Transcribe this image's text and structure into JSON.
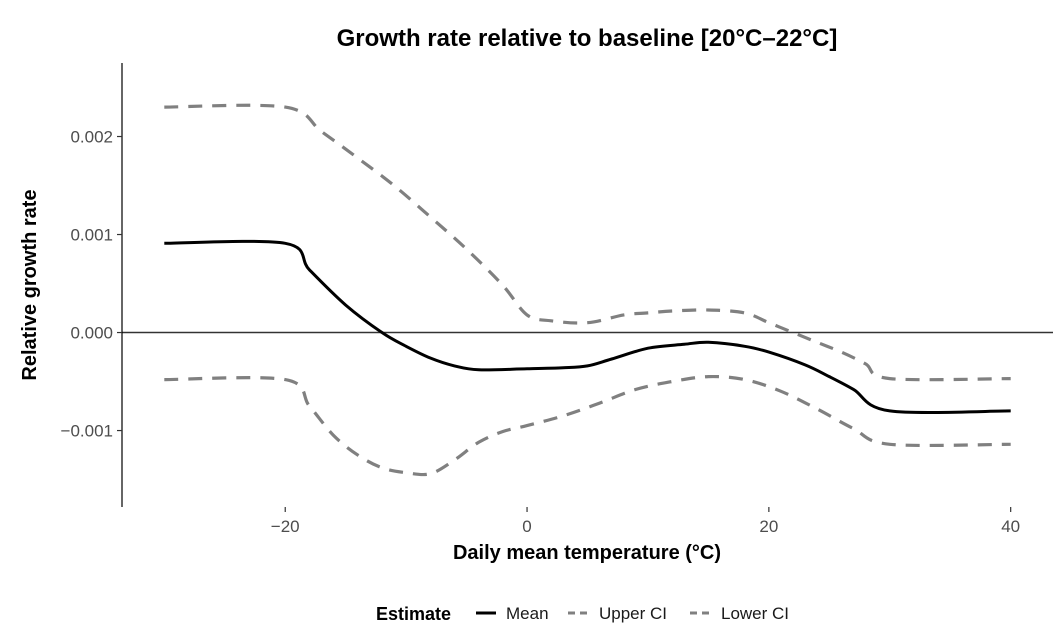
{
  "chart_data": {
    "type": "line",
    "title": "Growth rate relative to baseline [20°C–22°C]",
    "xlabel": "Daily mean temperature (°C)",
    "ylabel": "Relative growth rate",
    "xlim": [
      -33.5,
      43.5
    ],
    "ylim": [
      -0.00178,
      0.00275
    ],
    "x_ticks": [
      -20,
      0,
      20,
      40
    ],
    "x_tick_labels": [
      "−20",
      "0",
      "20",
      "40"
    ],
    "y_ticks": [
      -0.001,
      0.0,
      0.001,
      0.002
    ],
    "y_tick_labels": [
      "−0.001",
      "0.000",
      "0.001",
      "0.002"
    ],
    "reference_line_y": 0,
    "grid": false,
    "legend": {
      "title": "Estimate",
      "position": "bottom",
      "entries": [
        "Mean",
        "Upper CI",
        "Lower CI"
      ]
    },
    "series": [
      {
        "name": "Mean",
        "color": "#000000",
        "style": "solid",
        "x": [
          -30,
          -20,
          -18,
          -15,
          -12,
          -10,
          -8,
          -6,
          -4,
          0,
          3,
          5,
          7,
          10,
          13,
          15,
          18,
          20,
          23,
          25,
          27,
          30,
          40
        ],
        "y": [
          0.00091,
          0.00091,
          0.00064,
          0.00028,
          0.0,
          -0.00014,
          -0.00026,
          -0.00034,
          -0.00038,
          -0.00037,
          -0.00036,
          -0.00034,
          -0.00027,
          -0.00016,
          -0.00012,
          -0.0001,
          -0.00014,
          -0.0002,
          -0.00033,
          -0.00045,
          -0.00058,
          -0.0008,
          -0.0008
        ]
      },
      {
        "name": "Upper CI",
        "color": "#808080",
        "style": "dashed",
        "x": [
          -30,
          -20,
          -17,
          -14,
          -11,
          -8,
          -5,
          -2,
          0,
          2,
          5,
          8,
          10,
          12,
          15,
          18,
          20,
          22,
          24,
          26,
          28,
          30,
          40
        ],
        "y": [
          0.0023,
          0.0023,
          0.00205,
          0.00178,
          0.0015,
          0.00118,
          0.00085,
          0.00048,
          0.00018,
          0.00012,
          0.0001,
          0.00018,
          0.0002,
          0.00022,
          0.00023,
          0.0002,
          0.0001,
          0.0,
          -0.0001,
          -0.0002,
          -0.00032,
          -0.00047,
          -0.00047
        ]
      },
      {
        "name": "Lower CI",
        "color": "#808080",
        "style": "dashed",
        "x": [
          -30,
          -20,
          -18,
          -16,
          -14,
          -12,
          -10,
          -8,
          -6,
          -4,
          -2,
          0,
          3,
          6,
          9,
          12,
          15,
          18,
          21,
          24,
          27,
          30,
          40
        ],
        "y": [
          -0.00048,
          -0.00048,
          -0.00075,
          -0.00105,
          -0.00125,
          -0.00138,
          -0.00143,
          -0.00144,
          -0.0013,
          -0.00112,
          -0.00101,
          -0.00095,
          -0.00085,
          -0.00072,
          -0.00058,
          -0.0005,
          -0.00045,
          -0.00048,
          -0.0006,
          -0.00078,
          -0.00098,
          -0.00114,
          -0.00114
        ]
      }
    ]
  }
}
